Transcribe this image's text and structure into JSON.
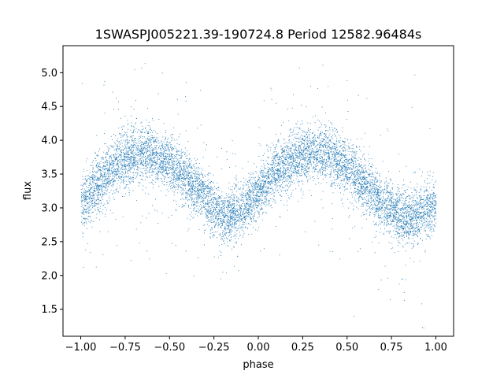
{
  "chart_data": {
    "type": "scatter",
    "title": "1SWASPJ005221.39-190724.8 Period 12582.96484s",
    "xlabel": "phase",
    "ylabel": "flux",
    "xlim": [
      -1.1,
      1.1
    ],
    "ylim": [
      1.1,
      5.4
    ],
    "xticks": [
      -1.0,
      -0.75,
      -0.5,
      -0.25,
      0.0,
      0.25,
      0.5,
      0.75,
      1.0
    ],
    "xtick_labels": [
      "−1.00",
      "−0.75",
      "−0.50",
      "−0.25",
      "0.00",
      "0.25",
      "0.50",
      "0.75",
      "1.00"
    ],
    "yticks": [
      1.5,
      2.0,
      2.5,
      3.0,
      3.5,
      4.0,
      4.5,
      5.0
    ],
    "ytick_labels": [
      "1.5",
      "2.0",
      "2.5",
      "3.0",
      "3.5",
      "4.0",
      "4.5",
      "5.0"
    ],
    "grid": false,
    "marker_color": "#1f77b4",
    "series": [
      {
        "x": [
          -1.0,
          -0.9,
          -0.8,
          -0.7,
          -0.6,
          -0.5,
          -0.4,
          -0.3,
          -0.2,
          -0.1,
          0.0,
          0.1,
          0.2,
          0.3,
          0.4,
          0.5,
          0.6,
          0.7,
          0.8,
          0.9,
          1.0
        ],
        "y": [
          3.05,
          3.35,
          3.65,
          3.8,
          3.8,
          3.65,
          3.45,
          3.15,
          2.85,
          2.95,
          3.25,
          3.55,
          3.75,
          3.82,
          3.8,
          3.6,
          3.35,
          3.05,
          2.85,
          2.9,
          3.05
        ]
      }
    ]
  }
}
